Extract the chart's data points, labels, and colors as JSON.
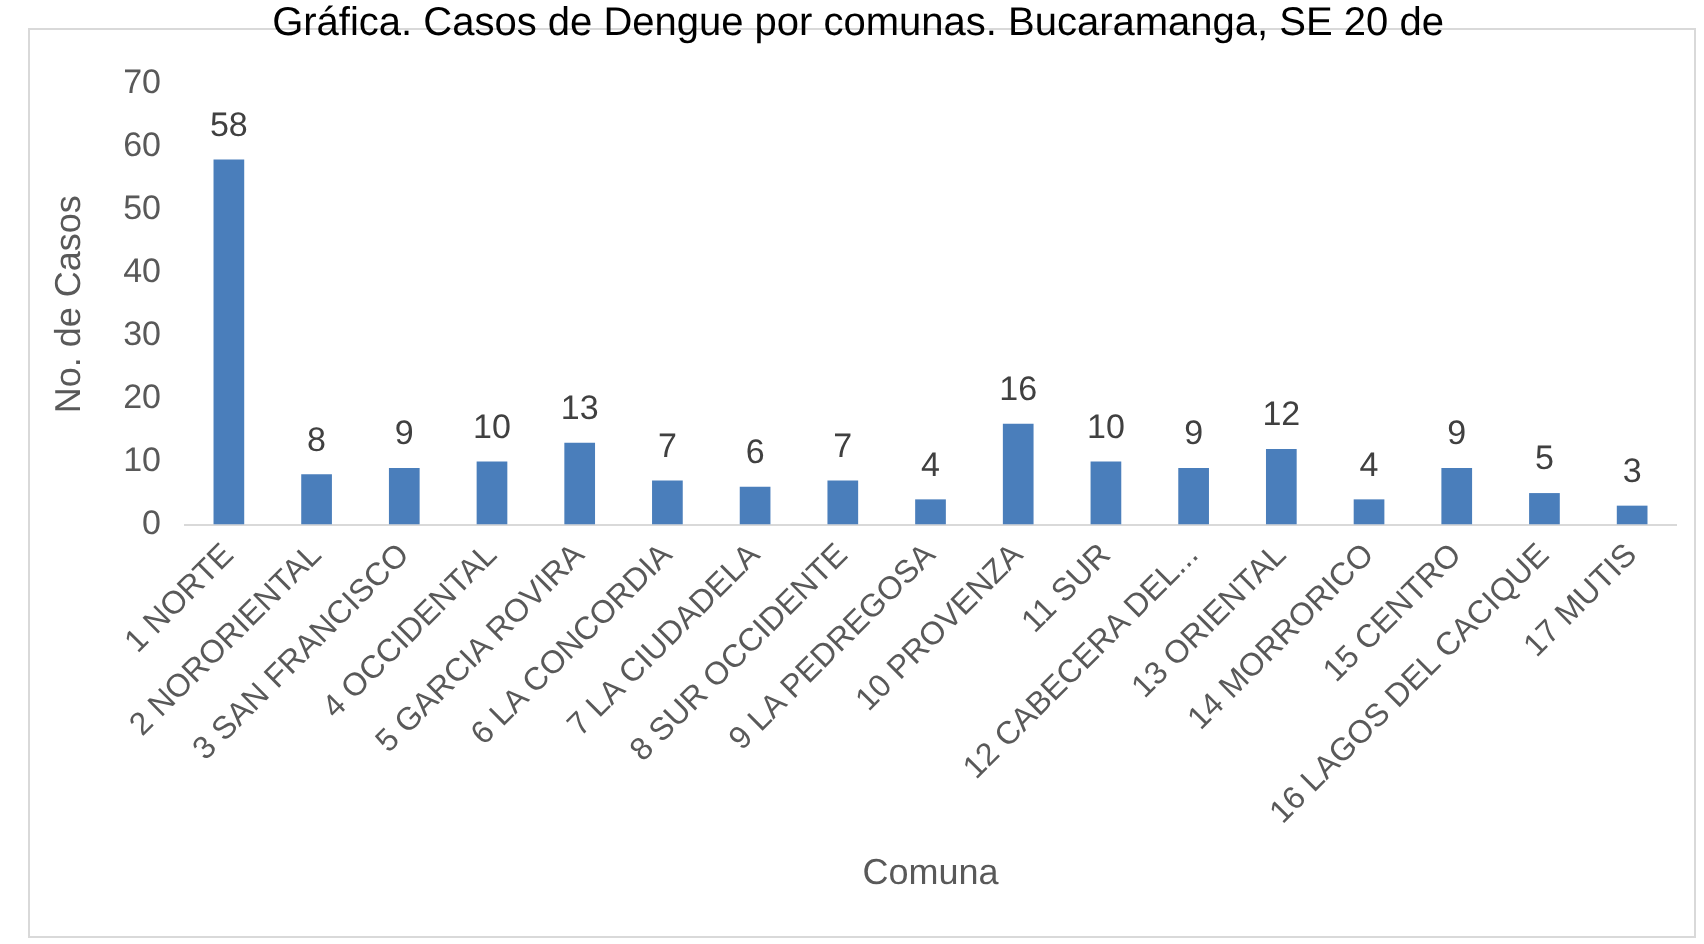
{
  "chart_data": {
    "type": "bar",
    "title": "Gráfica. Casos de Dengue por comunas. Bucaramanga, SE 20 de",
    "xlabel": "Comuna",
    "ylabel": "No. de Casos",
    "categories": [
      "1 NORTE",
      "2 NORORIENTAL",
      "3 SAN FRANCISCO",
      "4 OCCIDENTAL",
      "5 GARCIA ROVIRA",
      "6 LA CONCORDIA",
      "7 LA CIUDADELA",
      "8 SUR OCCIDENTE",
      "9 LA PEDREGOSA",
      "10 PROVENZA",
      "11 SUR",
      "12 CABECERA DEL...",
      "13 ORIENTAL",
      "14 MORRORICO",
      "15 CENTRO",
      "16 LAGOS DEL CACIQUE",
      "17 MUTIS"
    ],
    "values": [
      58,
      8,
      9,
      10,
      13,
      7,
      6,
      7,
      4,
      16,
      10,
      9,
      12,
      4,
      9,
      5,
      3
    ],
    "color": "#4a7ebb",
    "ylim": [
      0,
      70
    ],
    "yticks": [
      0,
      10,
      20,
      30,
      40,
      50,
      60,
      70
    ],
    "grid": false,
    "legend": false,
    "data_labels": true
  }
}
